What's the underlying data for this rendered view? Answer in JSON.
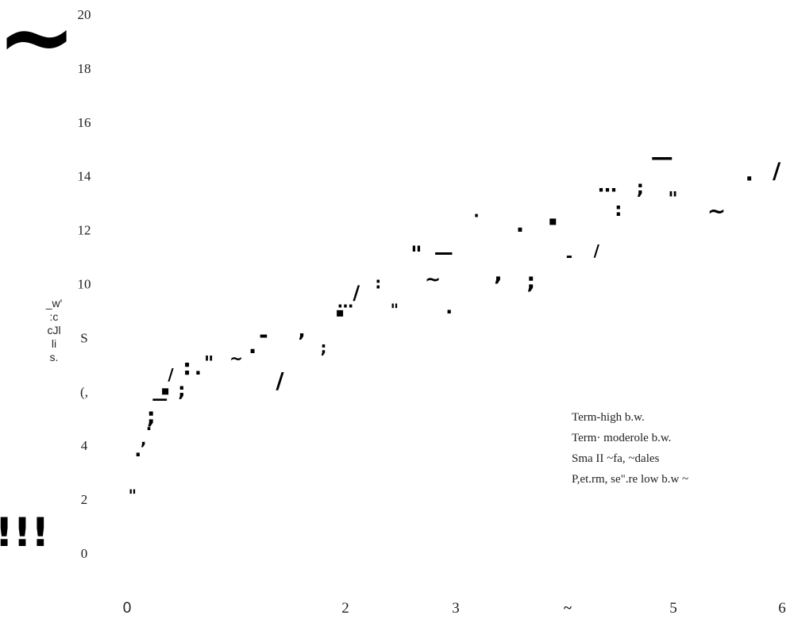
{
  "chart_data": {
    "type": "scatter",
    "title": "",
    "xlabel": "",
    "ylabel": "_w' :c cJl li s.",
    "xlim": [
      0,
      6
    ],
    "ylim": [
      0,
      20
    ],
    "y_ticks": [
      "20",
      "18",
      "16",
      "14",
      "12",
      "10",
      "S",
      "(,",
      "4",
      "2",
      "0"
    ],
    "x_ticks": [
      "0",
      "2",
      "3",
      "~",
      "5",
      "6"
    ],
    "legend": {
      "position": "right",
      "entries": [
        "Term-high  b.w.",
        "Term· moderole b.w.",
        "Sma II ~fa, ~dales",
        "P,et.rm,  se\".re  low b.w ~"
      ]
    },
    "annotations": [
      "~",
      "!!!"
    ],
    "series": [
      {
        "points": [
          {
            "x": 0.05,
            "y": 2.1
          },
          {
            "x": 0.1,
            "y": 3.6
          },
          {
            "x": 0.22,
            "y": 5.0
          },
          {
            "x": 0.4,
            "y": 6.6
          },
          {
            "x": 0.75,
            "y": 7.0
          },
          {
            "x": 1.15,
            "y": 7.4
          },
          {
            "x": 1.8,
            "y": 7.6
          },
          {
            "x": 2.1,
            "y": 9.6
          },
          {
            "x": 2.65,
            "y": 11.0
          },
          {
            "x": 3.2,
            "y": 12.5
          },
          {
            "x": 4.7,
            "y": 13.5
          },
          {
            "x": 5.95,
            "y": 14.1
          }
        ]
      },
      {
        "points": [
          {
            "x": 0.15,
            "y": 4.2
          },
          {
            "x": 0.35,
            "y": 6.0
          },
          {
            "x": 0.55,
            "y": 6.8
          },
          {
            "x": 1.0,
            "y": 7.2
          },
          {
            "x": 1.6,
            "y": 8.2
          },
          {
            "x": 1.95,
            "y": 8.9
          },
          {
            "x": 2.3,
            "y": 10.0
          },
          {
            "x": 2.8,
            "y": 10.1
          },
          {
            "x": 3.4,
            "y": 10.3
          },
          {
            "x": 3.9,
            "y": 12.3
          },
          {
            "x": 4.5,
            "y": 12.7
          },
          {
            "x": 5.4,
            "y": 12.6
          }
        ]
      },
      {
        "points": [
          {
            "x": 0.3,
            "y": 5.7
          },
          {
            "x": 0.65,
            "y": 6.8
          },
          {
            "x": 1.25,
            "y": 8.0
          },
          {
            "x": 2.0,
            "y": 9.3
          },
          {
            "x": 2.9,
            "y": 11.1
          },
          {
            "x": 3.6,
            "y": 12.1
          },
          {
            "x": 4.05,
            "y": 11.0
          },
          {
            "x": 4.4,
            "y": 13.6
          },
          {
            "x": 4.9,
            "y": 14.6
          }
        ]
      },
      {
        "points": [
          {
            "x": 0.2,
            "y": 4.6
          },
          {
            "x": 0.5,
            "y": 6.0
          },
          {
            "x": 1.4,
            "y": 6.3
          },
          {
            "x": 2.45,
            "y": 9.0
          },
          {
            "x": 2.95,
            "y": 8.9
          },
          {
            "x": 3.7,
            "y": 10.0
          },
          {
            "x": 4.3,
            "y": 11.2
          },
          {
            "x": 5.0,
            "y": 13.1
          },
          {
            "x": 5.7,
            "y": 13.8
          }
        ]
      }
    ]
  }
}
